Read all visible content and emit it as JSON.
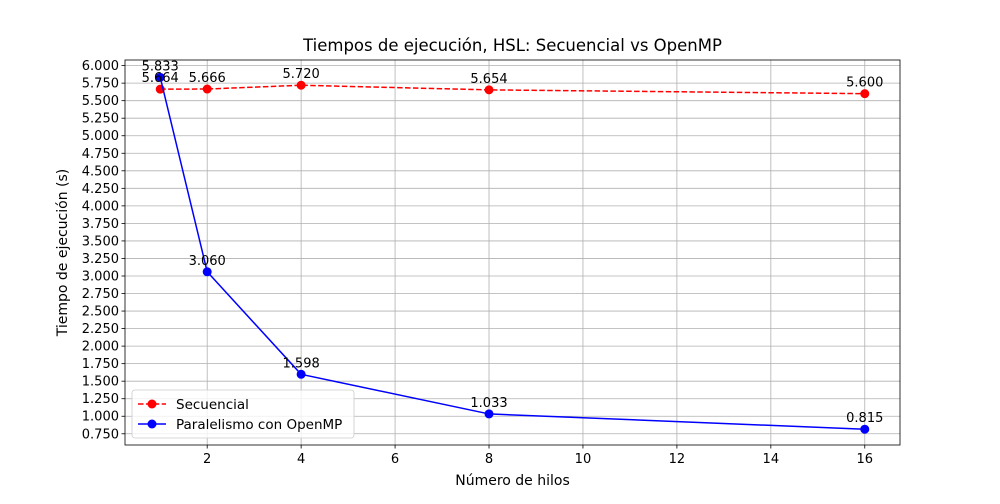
{
  "chart_data": {
    "type": "line",
    "title": "Tiempos de ejecución, HSL: Secuencial vs OpenMP",
    "xlabel": "Número de hilos",
    "ylabel": "Tiempo de ejecución (s)",
    "x": [
      1,
      2,
      4,
      8,
      16
    ],
    "xlim": [
      0.25,
      16.75
    ],
    "ylim": [
      0.59,
      6.08
    ],
    "x_ticks": [
      2,
      4,
      6,
      8,
      10,
      12,
      14,
      16
    ],
    "y_ticks": [
      0.75,
      1.0,
      1.25,
      1.5,
      1.75,
      2.0,
      2.25,
      2.5,
      2.75,
      3.0,
      3.25,
      3.5,
      3.75,
      4.0,
      4.25,
      4.5,
      4.75,
      5.0,
      5.25,
      5.5,
      5.75,
      6.0
    ],
    "grid": true,
    "legend_position": "lower-left",
    "series": [
      {
        "name": "Secuencial",
        "values": [
          5.664,
          5.666,
          5.72,
          5.654,
          5.6
        ],
        "labels": [
          "5.664",
          "5.666",
          "5.720",
          "5.654",
          "5.600"
        ],
        "color": "#ff0000",
        "line_style": "dashed",
        "marker": "circle"
      },
      {
        "name": "Paralelismo con OpenMP",
        "values": [
          5.833,
          3.06,
          1.598,
          1.033,
          0.815
        ],
        "labels": [
          "5.833",
          "3.060",
          "1.598",
          "1.033",
          "0.815"
        ],
        "color": "#0000ff",
        "line_style": "solid",
        "marker": "circle"
      }
    ]
  }
}
